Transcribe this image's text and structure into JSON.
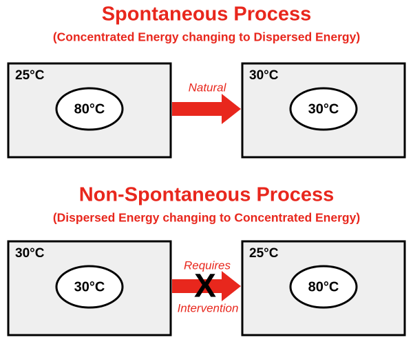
{
  "sections": [
    {
      "title": "Spontaneous Process",
      "subtitle": "(Concentrated Energy changing to Dispersed Energy)",
      "before": {
        "room": "25°C",
        "object": "80°C"
      },
      "arrow": {
        "label": "Natural"
      },
      "after": {
        "room": "30°C",
        "object": "30°C"
      }
    },
    {
      "title": "Non-Spontaneous Process",
      "subtitle": "(Dispersed Energy changing to Concentrated Energy)",
      "before": {
        "room": "30°C",
        "object": "30°C"
      },
      "arrow": {
        "label_top": "Requires",
        "mark": "X",
        "label_bottom": "Intervention"
      },
      "after": {
        "room": "25°C",
        "object": "80°C"
      }
    }
  ]
}
